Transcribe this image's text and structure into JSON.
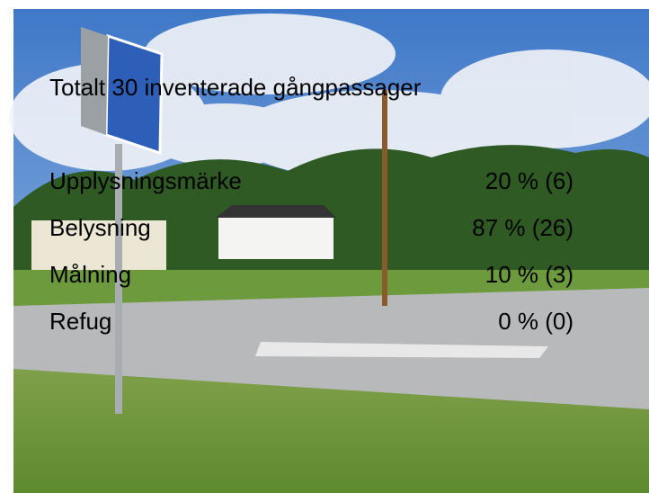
{
  "slide": {
    "title": "Totalt 30 inventerade gångpassager",
    "rows": [
      {
        "label": "Upplysningsmärke",
        "value": "20 % (6)"
      },
      {
        "label": "Belysning",
        "value": "87 % (26)"
      },
      {
        "label": "Målning",
        "value": "10 % (3)"
      },
      {
        "label": "Refug",
        "value": "0 % (0)"
      }
    ]
  }
}
